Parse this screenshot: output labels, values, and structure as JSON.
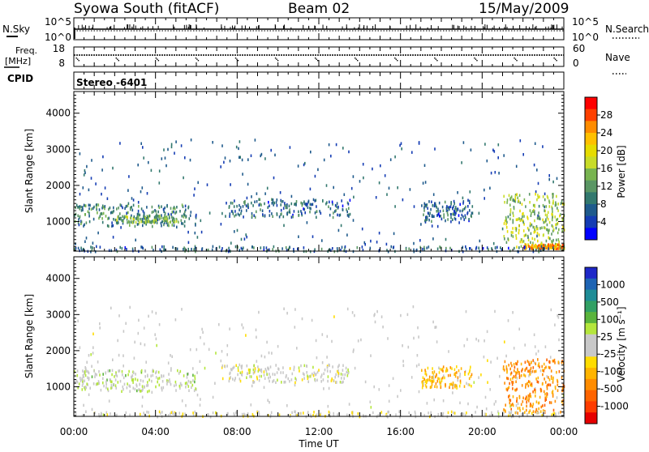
{
  "header": {
    "station": "Syowa South (fitACF)",
    "beam": "Beam 02",
    "date": "15/May/2009"
  },
  "panels": {
    "nsky": {
      "left_label": "N.Sky",
      "right_label": "N.Search",
      "left_ticks": [
        "10^5",
        "10^0"
      ],
      "right_ticks": [
        "10^5",
        "10^0"
      ]
    },
    "freq": {
      "left_label": "Freq.",
      "left_unit": "[MHz]",
      "right_label": "Nave",
      "left_ticks": [
        "18",
        "8"
      ],
      "right_ticks": [
        "60",
        "0"
      ]
    },
    "cpid": {
      "label": "CPID",
      "value": "Stereo -6401"
    }
  },
  "power_colorbar": {
    "title": "Power [dB]",
    "ticks": [
      "28",
      "24",
      "20",
      "16",
      "12",
      "8",
      "4"
    ],
    "colors": [
      "#ff0000",
      "#ff4000",
      "#ff8c00",
      "#ffc000",
      "#e6dc00",
      "#c8dc28",
      "#78b450",
      "#5a9664",
      "#32786e",
      "#1e5a8c",
      "#143cb4",
      "#0000ff"
    ]
  },
  "velocity_colorbar": {
    "title": "Velocity [m s⁻¹]",
    "ticks": [
      "1000",
      "500",
      "100",
      "25",
      "-25",
      "-100",
      "-500",
      "-1000"
    ],
    "colors": [
      "#1e28c8",
      "#1e64b4",
      "#1e8c96",
      "#32a064",
      "#5ab43c",
      "#b4e63c",
      "#c8c8c8",
      "#c8c8c8",
      "#ffdc00",
      "#ffb400",
      "#ff8c00",
      "#ff6400",
      "#ff3c00",
      "#e60000"
    ]
  },
  "chart_data": [
    {
      "type": "heatmap",
      "title": "Power",
      "xlabel": "Time UT",
      "ylabel": "Slant Range [km]",
      "xlim_hours": [
        0,
        24
      ],
      "ylim_km": [
        180,
        4600
      ],
      "x_ticks": [
        "00:00",
        "04:00",
        "08:00",
        "12:00",
        "16:00",
        "20:00",
        "00:00"
      ],
      "y_ticks": [
        "1000",
        "2000",
        "3000",
        "4000"
      ],
      "colorbar_label": "Power [dB]",
      "colorbar_range": [
        0,
        30
      ],
      "echo_regions": [
        {
          "t_start": 0.0,
          "t_end": 6.0,
          "r_min": 900,
          "r_max": 1500,
          "level_db": 8
        },
        {
          "t_start": 2.0,
          "t_end": 5.0,
          "r_min": 1000,
          "r_max": 1200,
          "level_db": 12
        },
        {
          "t_start": 7.2,
          "t_end": 13.5,
          "r_min": 1150,
          "r_max": 1650,
          "level_db": 6
        },
        {
          "t_start": 17.0,
          "t_end": 19.5,
          "r_min": 1000,
          "r_max": 1600,
          "level_db": 6
        },
        {
          "t_start": 21.0,
          "t_end": 24.0,
          "r_min": 300,
          "r_max": 1800,
          "level_db": 14
        },
        {
          "t_start": 22.0,
          "t_end": 24.0,
          "r_min": 280,
          "r_max": 400,
          "level_db": 22
        },
        {
          "t_start": 0.0,
          "t_end": 24.0,
          "r_min": 200,
          "r_max": 350,
          "level_db": 6
        }
      ]
    },
    {
      "type": "heatmap",
      "title": "Velocity",
      "xlabel": "Time UT",
      "ylabel": "Slant Range [km]",
      "xlim_hours": [
        0,
        24
      ],
      "ylim_km": [
        180,
        4600
      ],
      "x_ticks": [
        "00:00",
        "04:00",
        "08:00",
        "12:00",
        "16:00",
        "20:00",
        "00:00"
      ],
      "y_ticks": [
        "1000",
        "2000",
        "3000",
        "4000"
      ],
      "colorbar_label": "Velocity [m s⁻¹]",
      "colorbar_range": [
        -1000,
        1000
      ],
      "echo_regions": [
        {
          "t_start": 0.0,
          "t_end": 6.0,
          "r_min": 900,
          "r_max": 1500,
          "velocity": 100
        },
        {
          "t_start": 7.2,
          "t_end": 13.5,
          "r_min": 1150,
          "r_max": 1650,
          "velocity": 0
        },
        {
          "t_start": 17.0,
          "t_end": 19.5,
          "r_min": 1000,
          "r_max": 1600,
          "velocity": -300
        },
        {
          "t_start": 21.0,
          "t_end": 24.0,
          "r_min": 300,
          "r_max": 1800,
          "velocity": -500
        },
        {
          "t_start": 0.0,
          "t_end": 24.0,
          "r_min": 200,
          "r_max": 350,
          "velocity": -50
        }
      ]
    }
  ]
}
